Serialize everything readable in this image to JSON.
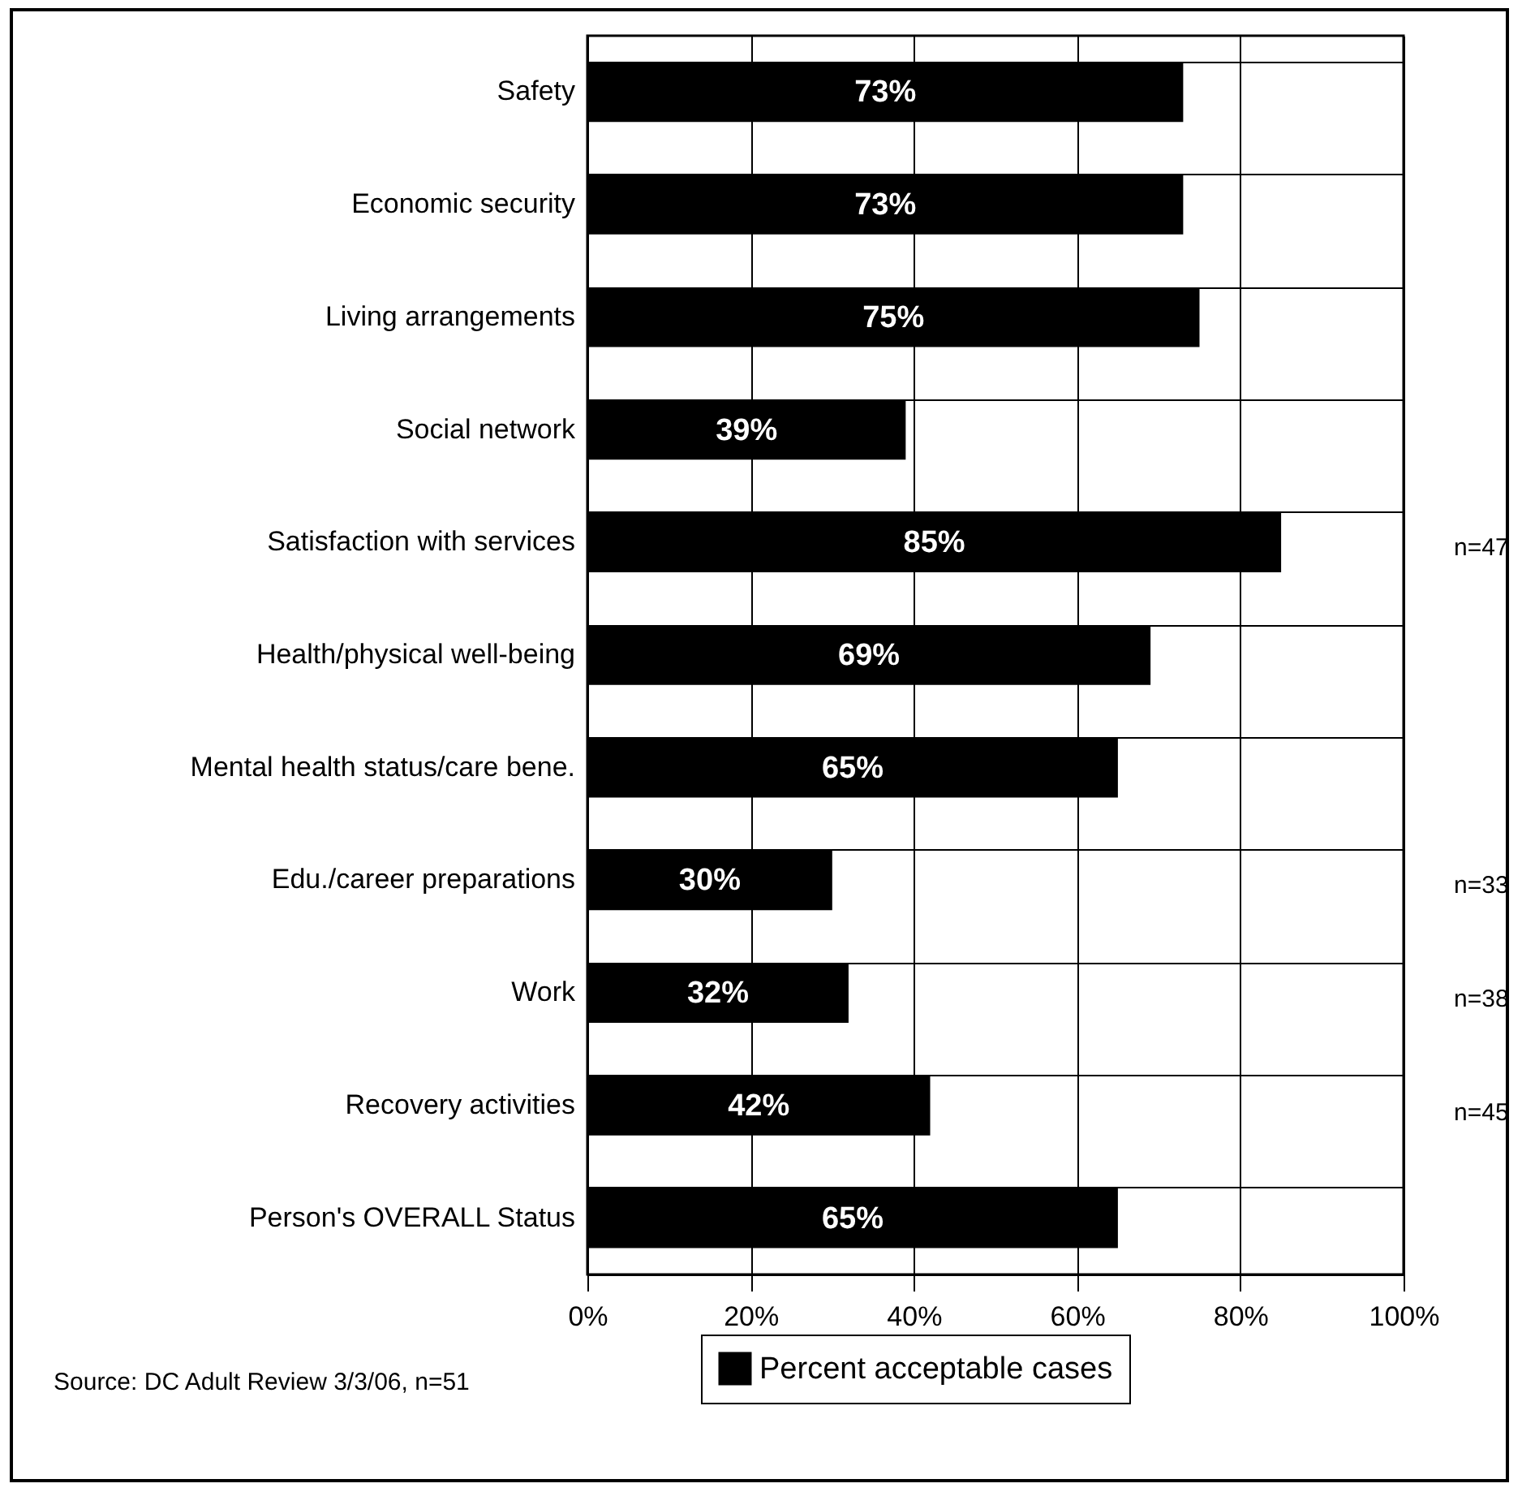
{
  "chart_data": {
    "type": "bar",
    "orientation": "horizontal",
    "categories": [
      "Safety",
      "Economic security",
      "Living arrangements",
      "Social network",
      "Satisfaction with services",
      "Health/physical well-being",
      "Mental health status/care bene.",
      "Edu./career preparations",
      "Work",
      "Recovery activities",
      "Person's OVERALL Status"
    ],
    "series": [
      {
        "name": "Percent acceptable cases",
        "color": "#000000",
        "values": [
          73,
          73,
          75,
          39,
          85,
          69,
          65,
          30,
          32,
          42,
          65
        ]
      }
    ],
    "xlim": [
      0,
      100
    ],
    "xticks": [
      {
        "value": 0,
        "label": "0%"
      },
      {
        "value": 20,
        "label": "20%"
      },
      {
        "value": 40,
        "label": "40%"
      },
      {
        "value": 60,
        "label": "60%"
      },
      {
        "value": 80,
        "label": "80%"
      },
      {
        "value": 100,
        "label": "100%"
      }
    ],
    "value_labels": [
      "73%",
      "73%",
      "75%",
      "39%",
      "85%",
      "69%",
      "65%",
      "30%",
      "32%",
      "42%",
      "65%"
    ],
    "grid": true,
    "legend": "bottom",
    "annotations": [
      "n=47",
      "n=33",
      "n=38",
      "n=45",
      "Source: DC Adult Review 3/3/06, n=51"
    ]
  }
}
